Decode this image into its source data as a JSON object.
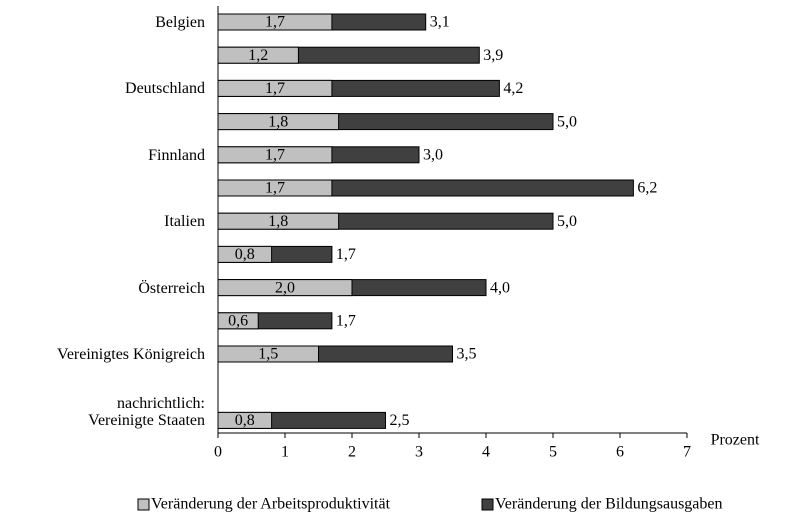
{
  "chart_data": {
    "type": "bar",
    "orientation": "horizontal",
    "overlay": true,
    "categories": [
      "Belgien",
      null,
      "Deutschland",
      null,
      "Finnland",
      null,
      "Italien",
      null,
      "Österreich",
      null,
      "Vereinigtes Königreich",
      null,
      "nachrichtlich:\nVereinigte Staaten"
    ],
    "series": [
      {
        "name": "Veränderung der Arbeitsproduktivität",
        "color": "#c0c0c0",
        "values": [
          1.7,
          1.2,
          1.7,
          1.8,
          1.7,
          1.7,
          1.8,
          0.8,
          2.0,
          0.6,
          1.5,
          null,
          0.8
        ],
        "value_labels": [
          "1,7",
          "1,2",
          "1,7",
          "1,8",
          "1,7",
          "1,7",
          "1,8",
          "0,8",
          "2,0",
          "0,6",
          "1,5",
          null,
          "0,8"
        ]
      },
      {
        "name": "Veränderung der Bildungsausgaben",
        "color": "#404040",
        "values": [
          3.1,
          3.9,
          4.2,
          5.0,
          3.0,
          6.2,
          5.0,
          1.7,
          4.0,
          1.7,
          3.5,
          null,
          2.5
        ],
        "value_labels": [
          "3,1",
          "3,9",
          "4,2",
          "5,0",
          "3,0",
          "6,2",
          "5,0",
          "1,7",
          "4,0",
          "1,7",
          "3,5",
          null,
          "2,5"
        ]
      }
    ],
    "xlabel": "Prozent",
    "xlim": [
      0,
      7
    ],
    "xticks": [
      0,
      1,
      2,
      3,
      4,
      5,
      6,
      7
    ],
    "legend": "bottom"
  }
}
